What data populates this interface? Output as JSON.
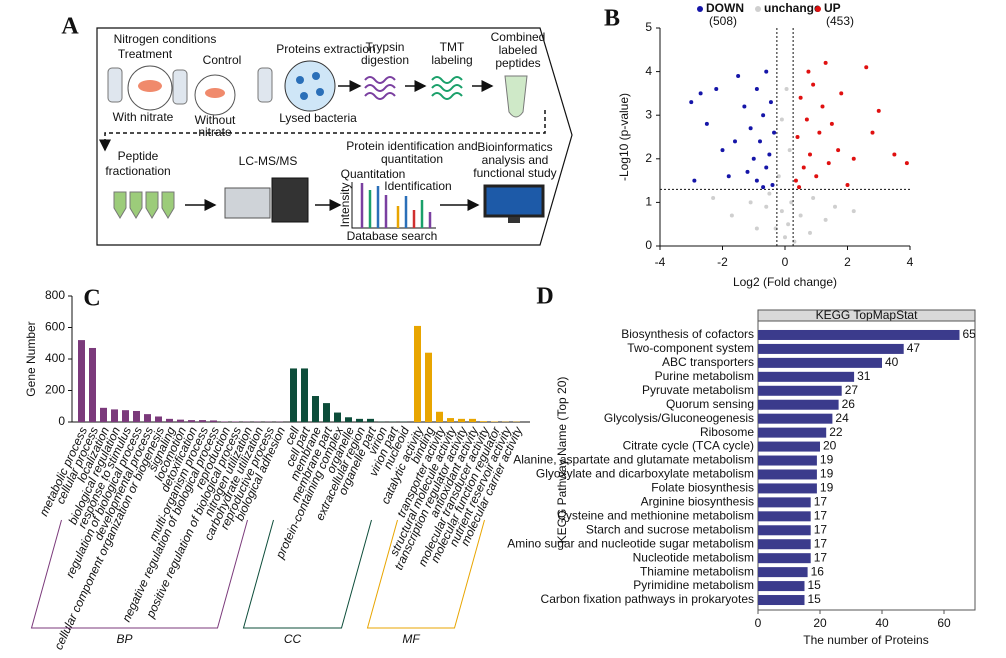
{
  "panel_labels": [
    "A",
    "B",
    "C",
    "D"
  ],
  "diagram": {
    "nitrogen_conditions": "Nitrogen conditions",
    "treatment": "Treatment",
    "control": "Control",
    "with_nitrate": "With nitrate",
    "without_nitrate": [
      "Without",
      "nitrate"
    ],
    "proteins_extraction": "Proteins extraction",
    "lysed_bacteria": "Lysed bacteria",
    "trypsin": [
      "Trypsin",
      "digestion"
    ],
    "tmt": [
      "TMT",
      "labeling"
    ],
    "combined": [
      "Combined",
      "labeled",
      "peptides"
    ],
    "fractionation": [
      "Peptide",
      "fractionation"
    ],
    "lcms": "LC-MS/MS",
    "identification_title": [
      "Protein identification and",
      "quantitation"
    ],
    "quantitation": "Quantitation",
    "identification": "Identification",
    "intensity": "Intensity",
    "database_search": "Database search",
    "bioinformatics": [
      "Bioinformatics",
      "analysis and",
      "functional study"
    ]
  },
  "chart_data": [
    {
      "type": "scatter",
      "xlabel": "Log2 (Fold change)",
      "ylabel": "-Log10 (p-value)",
      "xlim": [
        -4,
        4
      ],
      "ylim": [
        0,
        5
      ],
      "xticks": [
        -4,
        -2,
        0,
        2,
        4
      ],
      "yticks": [
        0,
        1,
        2,
        3,
        4,
        5
      ],
      "hlines": [
        1.3
      ],
      "vlines": [
        -0.26,
        0.26
      ],
      "annotations": [
        "(508)",
        "(453)"
      ],
      "series": [
        {
          "name": "DOWN",
          "color": "#1515a8",
          "x": [
            -3,
            -2.7,
            -2.2,
            -2.5,
            -2,
            -1.8,
            -1.5,
            -1.3,
            -1.1,
            -1.0,
            -0.9,
            -0.8,
            -0.7,
            -0.6,
            -0.5,
            -0.4,
            -0.35,
            -1.2,
            -0.9,
            -0.6,
            -1.6,
            -2.9,
            -0.45,
            -0.7
          ],
          "values": [
            3.3,
            3.5,
            3.6,
            2.8,
            2.2,
            1.6,
            3.9,
            3.2,
            2.7,
            2.0,
            1.5,
            2.4,
            3.0,
            1.8,
            2.1,
            1.4,
            2.6,
            1.7,
            3.6,
            4.0,
            2.4,
            1.5,
            3.3,
            1.35
          ]
        },
        {
          "name": "unchange",
          "color": "#cfcfcf",
          "x": [
            0,
            0.1,
            -0.1,
            0.2,
            -0.3,
            0.5,
            -0.6,
            0.9,
            -1.1,
            1.3,
            -0.2,
            0.15,
            -0.1,
            0.05,
            1.6,
            -1.7,
            0.3,
            -0.5,
            0.8,
            -0.9,
            2.2,
            -2.3
          ],
          "values": [
            0.2,
            0.5,
            0.8,
            1.0,
            0.4,
            0.7,
            0.9,
            1.1,
            1.0,
            0.6,
            1.6,
            2.2,
            2.9,
            3.6,
            0.9,
            0.7,
            0.1,
            1.2,
            0.3,
            0.4,
            0.8,
            1.1
          ]
        },
        {
          "name": "UP",
          "color": "#e01010",
          "x": [
            0.35,
            0.4,
            0.5,
            0.6,
            0.7,
            0.8,
            0.9,
            1.0,
            1.1,
            1.2,
            1.3,
            1.4,
            1.5,
            1.7,
            1.8,
            2.0,
            2.2,
            2.6,
            2.8,
            3.0,
            3.5,
            3.9,
            0.45,
            0.75
          ],
          "values": [
            1.5,
            2.5,
            3.4,
            1.8,
            2.9,
            2.1,
            3.7,
            1.6,
            2.6,
            3.2,
            4.2,
            1.9,
            2.8,
            2.2,
            3.5,
            1.4,
            2.0,
            4.1,
            2.6,
            3.1,
            2.1,
            1.9,
            1.35,
            4.0
          ]
        }
      ]
    },
    {
      "type": "bar",
      "ylabel": "Gene Number",
      "ylim": [
        0,
        800
      ],
      "yticks": [
        0,
        200,
        400,
        600,
        800
      ],
      "series": [
        {
          "name": "BP",
          "color": "#7b3a7b",
          "categories": [
            "metabolic process",
            "cellular process",
            "localization",
            "biological regulation",
            "response to stimulus",
            "regulation of biological process",
            "developmental process",
            "cellular component organization or biogenesis",
            "signaling",
            "locomotion",
            "detoxification",
            "multi-organism process",
            "negative regulation of biological process",
            "reproduction",
            "positive regulation of biological process",
            "nitrogen utilization",
            "carbohydrate utilization",
            "reproductive process",
            "biological adhesion"
          ],
          "values": [
            520,
            470,
            90,
            80,
            75,
            70,
            50,
            35,
            20,
            15,
            12,
            12,
            10,
            3,
            3,
            2,
            2,
            2,
            2
          ]
        },
        {
          "name": "CC",
          "color": "#0d4d3a",
          "categories": [
            "cell",
            "cell part",
            "membrane",
            "membrane part",
            "protein-containing complex",
            "organelle",
            "extracellular region",
            "organelle part",
            "virion",
            "virion part",
            "nucleoid"
          ],
          "values": [
            340,
            340,
            165,
            120,
            60,
            30,
            20,
            20,
            2,
            2,
            2
          ]
        },
        {
          "name": "MF",
          "color": "#e8a500",
          "categories": [
            "catalytic activity",
            "binding",
            "transporter activity",
            "structural molecule activity",
            "transcription regulator activity",
            "antioxidant activity",
            "molecular transducer activity",
            "molecular function regulator",
            "nutrient reservoir activity",
            "molecular carrier activity"
          ],
          "values": [
            610,
            440,
            65,
            25,
            20,
            20,
            5,
            3,
            2,
            2
          ]
        }
      ]
    },
    {
      "type": "barh",
      "title": "KEGG TopMapStat",
      "xlabel": "The number of Proteins",
      "ylabel": "KEGG Pathway Name (Top 20)",
      "xlim": [
        0,
        70
      ],
      "xticks": [
        0,
        20,
        40,
        60
      ],
      "color": "#3b3b8c",
      "categories": [
        "Biosynthesis of cofactors",
        "Two-component system",
        "ABC transporters",
        "Purine metabolism",
        "Pyruvate metabolism",
        "Quorum sensing",
        "Glycolysis/Gluconeogenesis",
        "Ribosome",
        "Citrate cycle (TCA cycle)",
        "Alanine, aspartate and glutamate metabolism",
        "Glyoxylate and dicarboxylate metabolism",
        "Folate biosynthesis",
        "Arginine biosynthesis",
        "Cysteine and methionine metabolism",
        "Starch and sucrose metabolism",
        "Amino sugar and nucleotide sugar metabolism",
        "Nucleotide metabolism",
        "Thiamine metabolism",
        "Pyrimidine metabolism",
        "Carbon fixation pathways in prokaryotes"
      ],
      "values": [
        65,
        47,
        40,
        31,
        27,
        26,
        24,
        22,
        20,
        19,
        19,
        19,
        17,
        17,
        17,
        17,
        17,
        16,
        15,
        15
      ]
    }
  ]
}
